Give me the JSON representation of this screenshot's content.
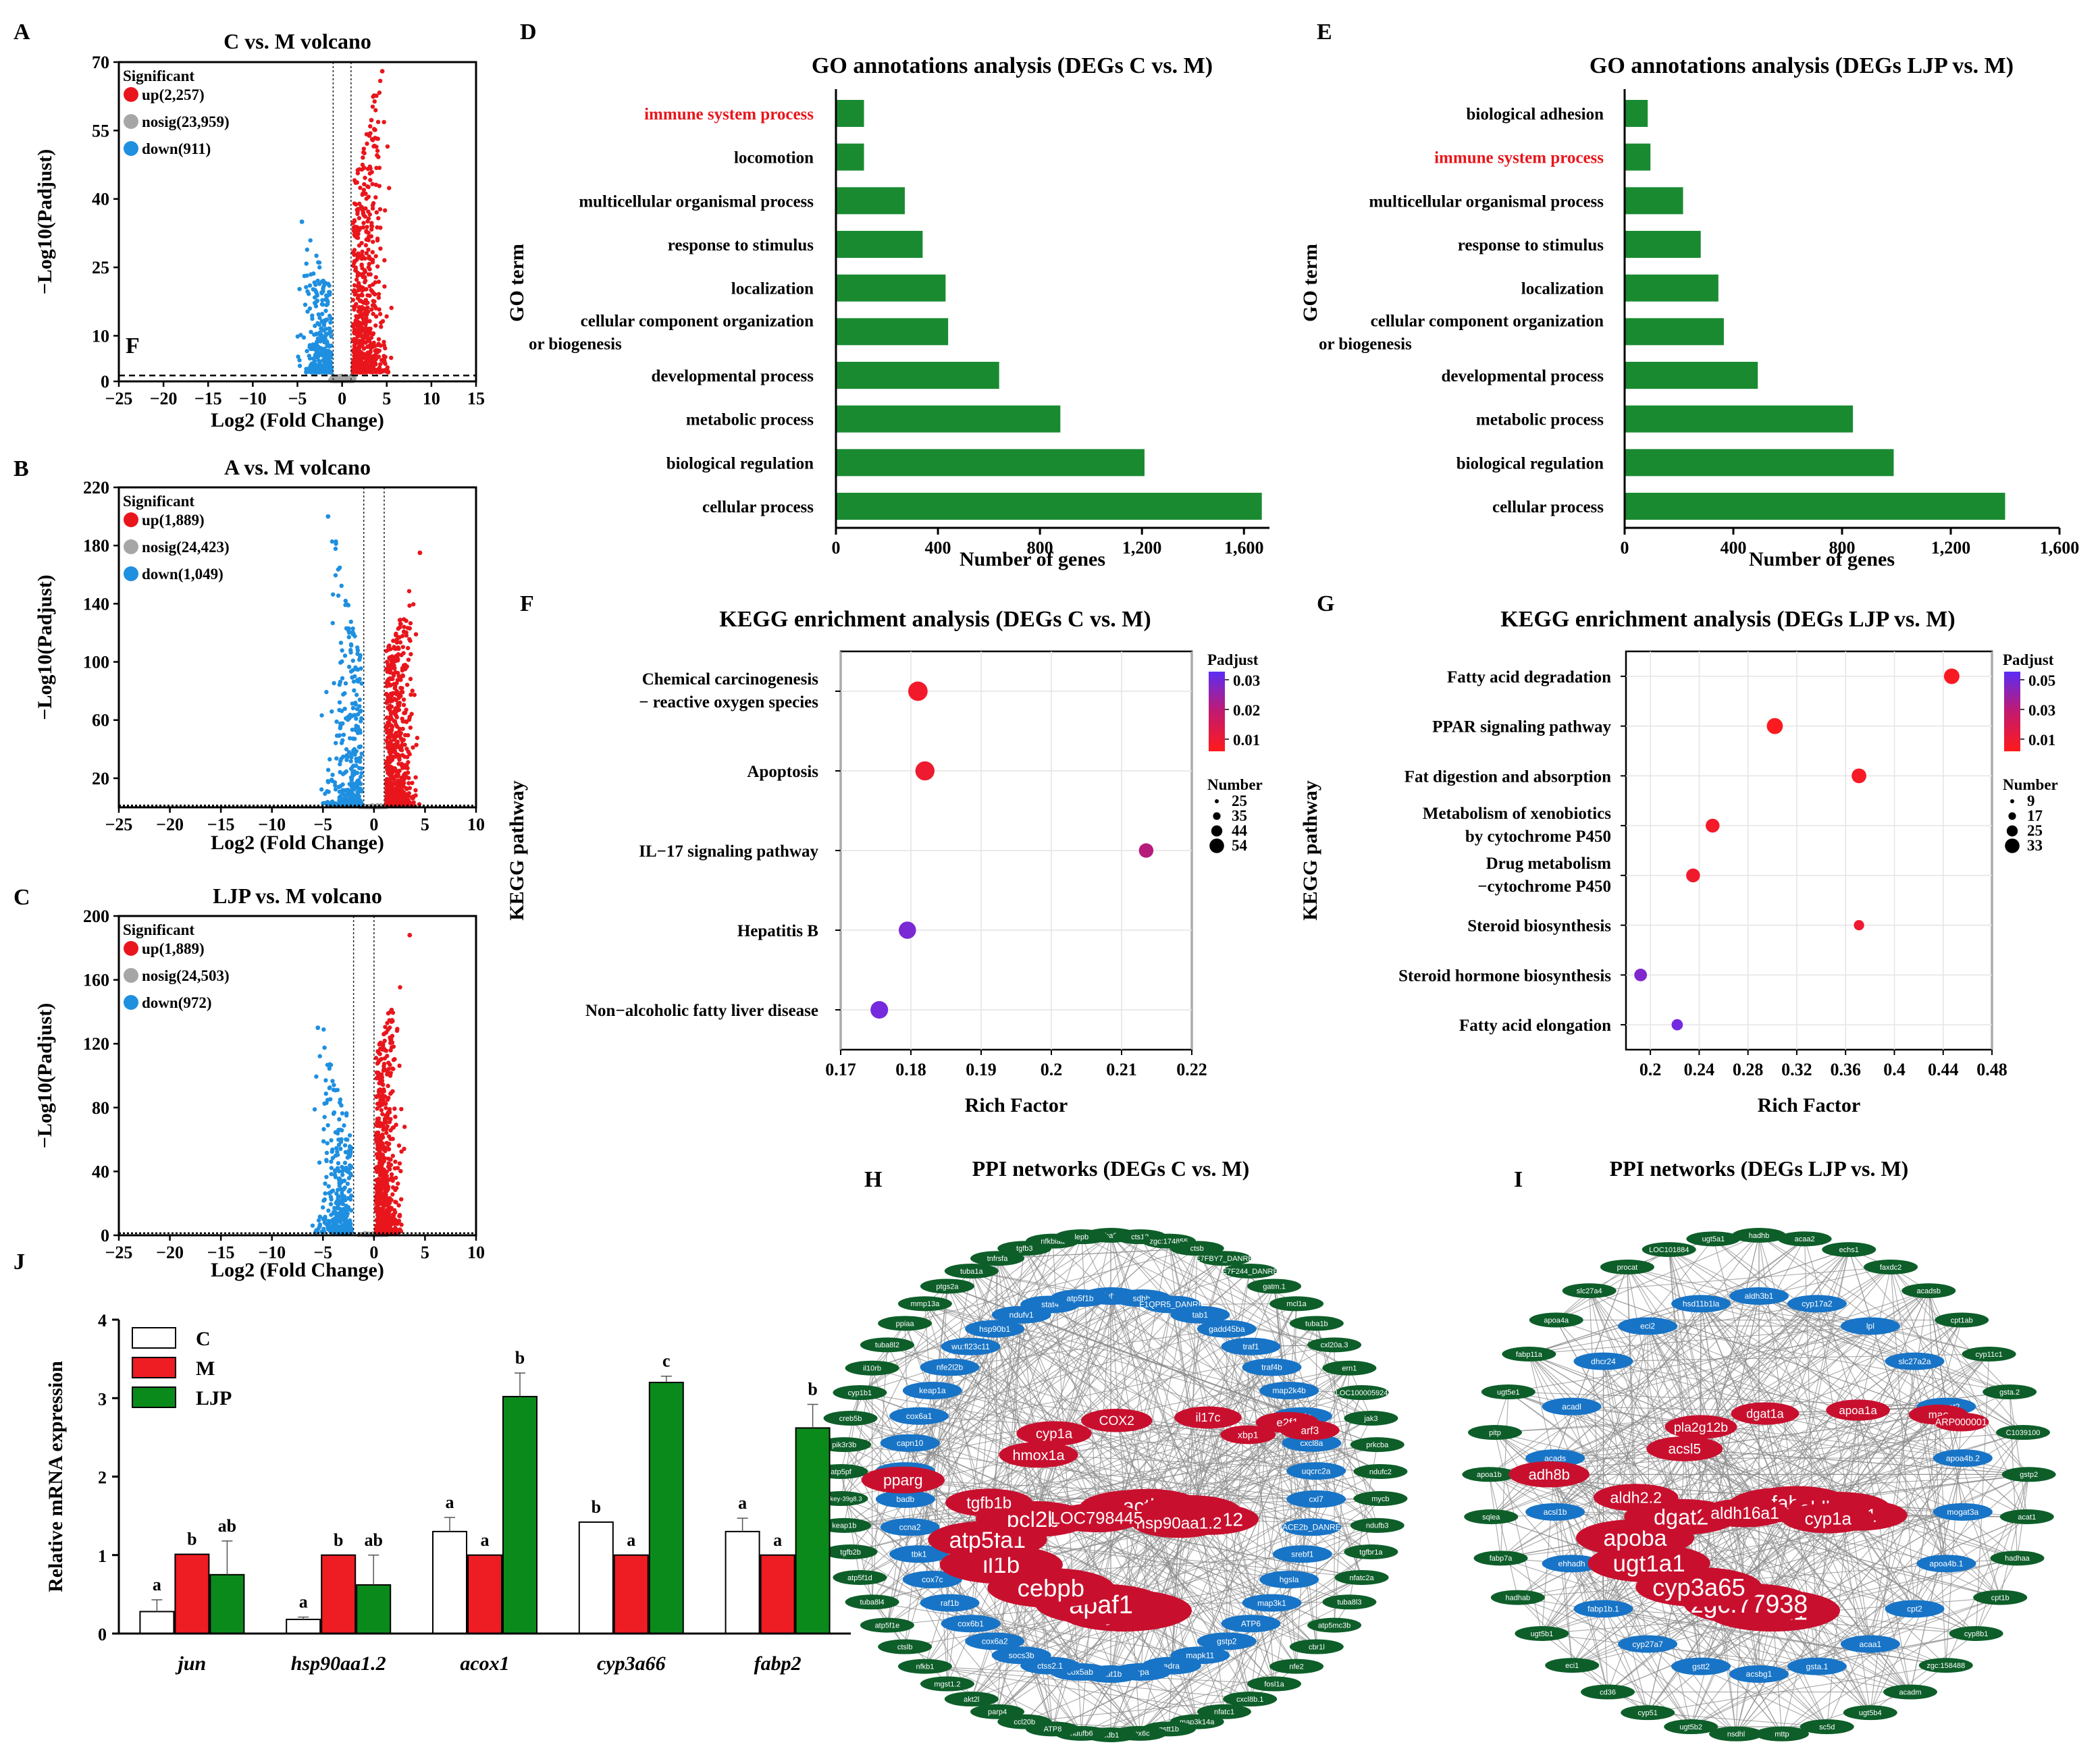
{
  "colors": {
    "up": "#e8161c",
    "nosig": "#a6a6a6",
    "down": "#1f8fe0",
    "go_bar": "#1a8a31",
    "highlight": "#e8161c",
    "bar_c": "#ffffff",
    "bar_m": "#ee1c23",
    "bar_ljp": "#0b8a1c",
    "node_red": "#c8102e",
    "node_blue": "#1874c6",
    "node_green": "#0e5e2a",
    "edge": "#8c8c8c"
  },
  "panel_labels": {
    "a": "A",
    "b": "B",
    "c": "C",
    "d": "D",
    "e": "E",
    "f": "F",
    "g": "G",
    "h": "H",
    "i": "I",
    "j": "J",
    "f_inset": "F"
  },
  "chart_data": [
    {
      "id": "A",
      "type": "scatter",
      "title": "C vs. M volcano",
      "xlabel": "Log2 (Fold Change)",
      "ylabel": "−Log10(Padjust)",
      "xlim": [
        -25,
        15
      ],
      "ylim": [
        0,
        70
      ],
      "xticks": [
        -25,
        -20,
        -15,
        -10,
        -5,
        0,
        5,
        10,
        15
      ],
      "yticks": [
        0,
        10,
        25,
        40,
        55,
        70
      ],
      "legend": {
        "heading": "Significant",
        "up": "up(2,257)",
        "nosig": "nosig(23,959)",
        "down": "down(911)"
      },
      "threshold_y": 1.3,
      "fc_lines": [
        -1,
        1
      ],
      "up_range": {
        "x": [
          1,
          12
        ],
        "ymax": 68
      },
      "down_range": {
        "x": [
          -12,
          -1
        ],
        "ymax": 35
      }
    },
    {
      "id": "B",
      "type": "scatter",
      "title": "A vs. M volcano",
      "xlabel": "Log2 (Fold Change)",
      "ylabel": "−Log10(Padjust)",
      "xlim": [
        -25,
        10
      ],
      "ylim": [
        0,
        220
      ],
      "xticks": [
        -25,
        -20,
        -15,
        -10,
        -5,
        0,
        5,
        10
      ],
      "yticks": [
        20,
        60,
        100,
        140,
        180,
        220
      ],
      "legend": {
        "heading": "Significant",
        "up": "up(1,889)",
        "nosig": "nosig(24,423)",
        "down": "down(1,049)"
      },
      "threshold_y": 1.3,
      "fc_lines": [
        -1,
        1
      ],
      "up_range": {
        "x": [
          1,
          9
        ],
        "ymax": 175
      },
      "down_range": {
        "x": [
          -12,
          -1
        ],
        "ymax": 200
      }
    },
    {
      "id": "C",
      "type": "scatter",
      "title": "LJP vs. M volcano",
      "xlabel": "Log2 (Fold Change)",
      "ylabel": "−Log10(Padjust)",
      "xlim": [
        -25,
        10
      ],
      "ylim": [
        0,
        200
      ],
      "xticks": [
        -25,
        -20,
        -15,
        -10,
        -5,
        0,
        5,
        10
      ],
      "yticks": [
        0,
        40,
        80,
        120,
        160,
        200
      ],
      "legend": {
        "heading": "Significant",
        "up": "up(1,889)",
        "nosig": "nosig(24,503)",
        "down": "down(972)"
      },
      "threshold_y": 1.3,
      "fc_lines": [
        -2,
        0
      ],
      "up_range": {
        "x": [
          0,
          7
        ],
        "ymax": 188
      },
      "down_range": {
        "x": [
          -13,
          -2
        ],
        "ymax": 130
      }
    },
    {
      "id": "D",
      "type": "bar",
      "orientation": "horizontal",
      "title": "GO annotations analysis (DEGs C vs. M)",
      "xlabel": "Number of genes",
      "ylabel": "GO term",
      "xlim": [
        0,
        1700
      ],
      "xticks": [
        0,
        400,
        800,
        1200,
        1600
      ],
      "xtick_labels": [
        "0",
        "400",
        "800",
        "1,200",
        "1,600"
      ],
      "categories": [
        "immune system process",
        "locomotion",
        "multicellular organismal process",
        "response to stimulus",
        "localization",
        "cellular component organization|or biogenesis",
        "developmental process",
        "metabolic process",
        "biological regulation",
        "cellular process"
      ],
      "values": [
        110,
        110,
        270,
        340,
        430,
        440,
        640,
        880,
        1210,
        1670
      ],
      "highlight": [
        "immune system process"
      ]
    },
    {
      "id": "E",
      "type": "bar",
      "orientation": "horizontal",
      "title": "GO annotations analysis (DEGs LJP vs. M)",
      "xlabel": "Number of genes",
      "ylabel": "GO term",
      "xlim": [
        0,
        1600
      ],
      "xticks": [
        0,
        400,
        800,
        1200,
        1600
      ],
      "xtick_labels": [
        "0",
        "400",
        "800",
        "1,200",
        "1,600"
      ],
      "categories": [
        "biological adhesion",
        "immune system process",
        "multicellular organismal process",
        "response to stimulus",
        "localization",
        "cellular component organization|or biogenesis",
        "developmental process",
        "metabolic process",
        "biological regulation",
        "cellular process"
      ],
      "values": [
        85,
        95,
        215,
        280,
        345,
        365,
        490,
        840,
        990,
        1400
      ],
      "highlight": [
        "immune system process"
      ]
    },
    {
      "id": "F",
      "type": "scatter",
      "title": "KEGG enrichment analysis (DEGs C vs. M)",
      "xlabel": "Rich Factor",
      "ylabel": "KEGG pathway",
      "xlim": [
        0.17,
        0.22
      ],
      "xticks": [
        0.17,
        0.18,
        0.19,
        0.2,
        0.21,
        0.22
      ],
      "xtick_labels": [
        "0.17",
        "0.18",
        "0.19",
        "0.2",
        "0.21",
        "0.22"
      ],
      "categories": [
        "Chemical carcinogenesis|− reactive oxygen species",
        "Apoptosis",
        "IL−17 signaling pathway",
        "Hepatitis B",
        "Non−alcoholic fatty liver disease"
      ],
      "x": [
        0.181,
        0.182,
        0.2135,
        0.1795,
        0.1755
      ],
      "size": [
        54,
        52,
        25,
        40,
        42
      ],
      "padjust": [
        0.006,
        0.007,
        0.02,
        0.03,
        0.031
      ],
      "color_scale": {
        "label": "Padjust",
        "ticks": [
          "0.03",
          "0.02",
          "0.01"
        ],
        "min": 0.003,
        "max": 0.033
      },
      "size_legend": {
        "label": "Number",
        "values": [
          "25",
          "35",
          "44",
          "54"
        ]
      }
    },
    {
      "id": "G",
      "type": "scatter",
      "title": "KEGG enrichment analysis (DEGs LJP vs. M)",
      "xlabel": "Rich Factor",
      "ylabel": "KEGG pathway",
      "xlim": [
        0.18,
        0.48
      ],
      "xticks": [
        0.2,
        0.24,
        0.28,
        0.32,
        0.36,
        0.4,
        0.44,
        0.48
      ],
      "xtick_labels": [
        "0.2",
        "0.24",
        "0.28",
        "0.32",
        "0.36",
        "0.4",
        "0.44",
        "0.48"
      ],
      "categories": [
        "Fatty acid degradation",
        "PPAR signaling pathway",
        "Fat digestion and absorption",
        "Metabolism of xenobiotics|by cytochrome P450",
        "Drug metabolism|−cytochrome P450",
        "Steroid biosynthesis",
        "Steroid hormone biosynthesis",
        "Fatty acid elongation"
      ],
      "x": [
        0.447,
        0.302,
        0.371,
        0.251,
        0.235,
        0.371,
        0.192,
        0.222
      ],
      "size": [
        30,
        33,
        26,
        22,
        22,
        9,
        17,
        12
      ],
      "padjust": [
        0.003,
        0.002,
        0.004,
        0.005,
        0.006,
        0.008,
        0.048,
        0.052
      ],
      "color_scale": {
        "label": "Padjust",
        "ticks": [
          "0.05",
          "0.03",
          "0.01"
        ],
        "min": 0.0,
        "max": 0.055
      },
      "size_legend": {
        "label": "Number",
        "values": [
          "9",
          "17",
          "25",
          "33"
        ]
      }
    },
    {
      "id": "J",
      "type": "bar",
      "title": "",
      "xlabel": "",
      "ylabel": "Relative mRNA expression",
      "ylim": [
        0,
        4
      ],
      "yticks": [
        0,
        1,
        2,
        3,
        4
      ],
      "categories": [
        "jun",
        "hsp90aa1.2",
        "acox1",
        "cyp3a66",
        "fabp2"
      ],
      "series": [
        {
          "name": "C",
          "values": [
            0.28,
            0.18,
            1.3,
            1.42,
            1.3
          ],
          "errors": [
            0.15,
            0.03,
            0.18,
            0.0,
            0.17
          ],
          "letters": [
            "a",
            "a",
            "a",
            "b",
            "a"
          ]
        },
        {
          "name": "M",
          "values": [
            1.01,
            1.0,
            1.0,
            1.0,
            1.0
          ],
          "errors": [
            0,
            0,
            0,
            0,
            0
          ],
          "letters": [
            "b",
            "b",
            "a",
            "a",
            "a"
          ]
        },
        {
          "name": "LJP",
          "values": [
            0.75,
            0.62,
            3.02,
            3.2,
            2.62
          ],
          "errors": [
            0.43,
            0.38,
            0.3,
            0.08,
            0.3
          ],
          "letters": [
            "ab",
            "ab",
            "b",
            "c",
            "b"
          ]
        }
      ]
    }
  ],
  "ppi": [
    {
      "id": "H",
      "title": "PPI networks (DEGs C vs. M)",
      "red": [
        "jun",
        "apaf1",
        "cebpb",
        "il1b",
        "atp5fa1",
        "bcl2b",
        "actb1",
        "actb2",
        "gsto2",
        "ndufa12",
        "hsp90aa1.2",
        "LOC798445",
        "tgfb1b",
        "pparg",
        "hmox1a",
        "cyp1a",
        "COX2",
        "il17c",
        "e2f1",
        "arf3",
        "xbp1"
      ],
      "blue": [
        "Ndufa13",
        "sdhb",
        "F1QPR5_DANRE",
        "tab1",
        "gadd45ba",
        "traf1",
        "traf4b",
        "map2k4b",
        "atf4a",
        "cxcl8a",
        "uqcrc2a",
        "cxl7",
        "ACE2b_DANRE",
        "srebf1",
        "hgsla",
        "map3k1",
        "ATP6",
        "gstp2",
        "mapk11",
        "adra",
        "lepa",
        "stat1b",
        "cox5ab",
        "ctss2.1",
        "socs3b",
        "cox6a2",
        "cox6b1",
        "raf1b",
        "cox7c",
        "tbk1",
        "ccna2",
        "badb",
        "gstp1",
        "capn10",
        "cox6a1",
        "keap1a",
        "nfe2l2b",
        "wu:fl23c11",
        "hsp90b1",
        "ndufv1",
        "stat4",
        "atp5f1b"
      ],
      "green": [
        "tuba8l5",
        "cts12",
        "zgc:174855",
        "ctsb",
        "E7FBY7_DANRE",
        "E7F244_DANRE",
        "gatm.1",
        "mcl1a",
        "tuba1b",
        "cxl20a.3",
        "ern1",
        "LOC100005924",
        "jak3",
        "prkcba",
        "ndufc2",
        "mycb",
        "ndufb3",
        "tgfbr1a",
        "nfatc2a",
        "tuba8l3",
        "atp5mc3b",
        "cbr1l",
        "nfe2",
        "fosl1a",
        "cxcl8b.1",
        "nfatc1",
        "map3k14a",
        "gstt1b",
        "cox6c",
        "ddb1",
        "ndufb6",
        "ATP8",
        "ccl20b",
        "parp4",
        "akt2l",
        "mgst1.2",
        "nfkb1",
        "ctslb",
        "atp5f1e",
        "tuba8l4",
        "atp5f1d",
        "tgfb2b",
        "keap1b",
        "si:dkey-39g8.3",
        "atp5pf",
        "pik3r3b",
        "creb5b",
        "cyp1b1",
        "il10rb",
        "tuba8l2",
        "ppiaa",
        "mmp13a",
        "ptgs2a",
        "tuba1a",
        "tnfrsfa",
        "tgfb3",
        "nfkbiaa",
        "lepb"
      ]
    },
    {
      "id": "I",
      "title": "PPI networks (DEGs LJP vs. M)",
      "red": [
        "acox1",
        "zgc:77938",
        "cyp3a65",
        "ugt1a1",
        "apoba",
        "dgat2",
        "cel.1",
        "fabp2",
        "aldh3a2b",
        "fdft1",
        "cyp1a",
        "aldh16a1",
        "aldh2.2",
        "adh8b",
        "acsl5",
        "pla2g12b",
        "dgat1a",
        "apoa1a",
        "mao",
        "ARP000001"
      ],
      "blue": [
        "aldh3b1",
        "cyp17a2",
        "lpl",
        "slc27a2a",
        "mogat2",
        "apoa4b.2",
        "mogat3a",
        "apoa4b.1",
        "cpt2",
        "acaa1",
        "gsta.1",
        "acsbg1",
        "gstt2",
        "cyp27a7",
        "fabp1b.1",
        "ehhadh",
        "acsl1b",
        "acads",
        "acadl",
        "dhcr24",
        "eci2",
        "hsd11b1la"
      ],
      "green": [
        "hadhb",
        "acaa2",
        "echs1",
        "faxdc2",
        "acadsb",
        "cpt1ab",
        "cyp11c1",
        "gsta.2",
        "C1039100",
        "gstp2",
        "acat1",
        "hadhaa",
        "cpt1b",
        "cyp8b1",
        "zgc:158488",
        "acadm",
        "ugt5b4",
        "sc5d",
        "mttp",
        "nsdhl",
        "ugt5b2",
        "cyp51",
        "cd36",
        "eci1",
        "ugt5b1",
        "hadhab",
        "fabp7a",
        "sqlea",
        "apoa1b",
        "pitp",
        "ugt5e1",
        "fabp11a",
        "apoa4a",
        "slc27a4",
        "procat",
        "LOC101884",
        "ugt5a1"
      ]
    }
  ]
}
